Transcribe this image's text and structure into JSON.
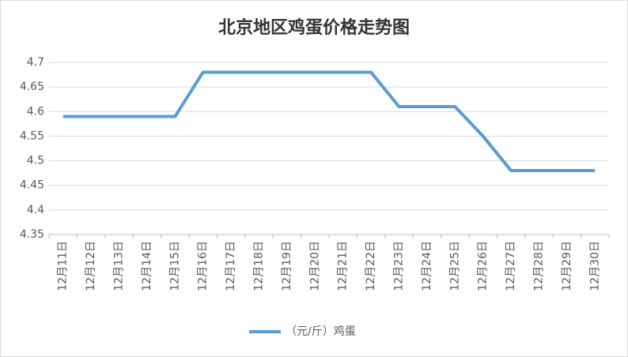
{
  "chart_data": {
    "type": "line",
    "title": "北京地区鸡蛋价格走势图",
    "categories": [
      "12月11日",
      "12月12日",
      "12月13日",
      "12月14日",
      "12月15日",
      "12月16日",
      "12月17日",
      "12月18日",
      "12月19日",
      "12月20日",
      "12月21日",
      "12月22日",
      "12月23日",
      "12月24日",
      "12月25日",
      "12月26日",
      "12月27日",
      "12月28日",
      "12月29日",
      "12月30日"
    ],
    "series": [
      {
        "name": "（元/斤）鸡蛋",
        "color": "#5b9bd5",
        "values": [
          4.59,
          4.59,
          4.59,
          4.59,
          4.59,
          4.68,
          4.68,
          4.68,
          4.68,
          4.68,
          4.68,
          4.68,
          4.61,
          4.61,
          4.61,
          4.55,
          4.48,
          4.48,
          4.48,
          4.48
        ]
      }
    ],
    "ylim": [
      4.35,
      4.7
    ],
    "yticks": [
      4.35,
      4.4,
      4.45,
      4.5,
      4.55,
      4.6,
      4.65,
      4.7
    ],
    "grid": true,
    "legend": "bottom"
  }
}
